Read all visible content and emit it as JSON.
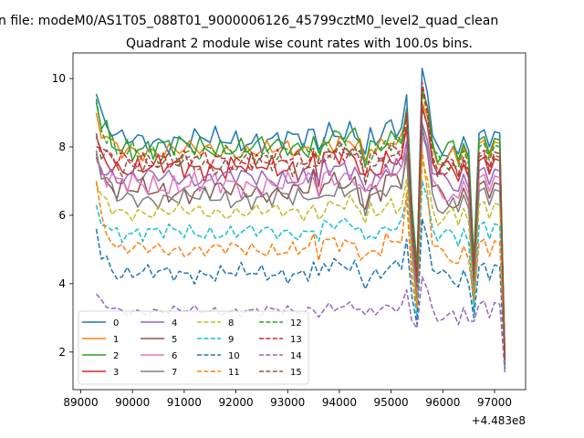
{
  "figure": {
    "suptitle": "n file: modeM0/AS1T05_088T01_9000006126_45799cztM0_level2_quad_clean"
  },
  "chart_data": {
    "type": "line",
    "title": "Quadrant 2 module wise count rates with 100.0s bins.",
    "xlabel": "",
    "ylabel": "",
    "x_offset_label": "+4.483e8",
    "x_offset": 448300000,
    "xlim": [
      88850,
      97600
    ],
    "ylim": [
      0.9,
      10.75
    ],
    "x_ticks": [
      89000,
      90000,
      91000,
      92000,
      93000,
      94000,
      95000,
      96000,
      97000
    ],
    "x_tick_labels": [
      "89000",
      "90000",
      "91000",
      "92000",
      "93000",
      "94000",
      "95000",
      "96000",
      "97000"
    ],
    "y_ticks": [
      2,
      4,
      6,
      8,
      10
    ],
    "y_tick_labels": [
      "2",
      "4",
      "6",
      "8",
      "10"
    ],
    "grid": false,
    "legend": {
      "placement": "lower-left",
      "columns": 4
    },
    "x_start": 89300,
    "x_step": 100,
    "n_points": 80,
    "series": [
      {
        "name": "0",
        "color": "#1f77b4",
        "dash": "solid",
        "base": 8.2,
        "amp": 0.35,
        "start": 9.55,
        "dip1": 4.5,
        "peak1": 10.3,
        "dip2": 1.6
      },
      {
        "name": "1",
        "color": "#ff7f0e",
        "dash": "solid",
        "base": 7.9,
        "amp": 0.3,
        "start": 9.0,
        "dip1": 3.8,
        "peak1": 9.3,
        "dip2": 1.7
      },
      {
        "name": "2",
        "color": "#2ca02c",
        "dash": "solid",
        "base": 8.0,
        "amp": 0.35,
        "start": 9.3,
        "dip1": 4.4,
        "peak1": 9.7,
        "dip2": 1.9
      },
      {
        "name": "3",
        "color": "#d62728",
        "dash": "solid",
        "base": 7.4,
        "amp": 0.35,
        "start": 8.3,
        "dip1": 4.0,
        "peak1": 9.2,
        "dip2": 1.8
      },
      {
        "name": "4",
        "color": "#9467bd",
        "dash": "solid",
        "base": 7.1,
        "amp": 0.3,
        "start": 7.8,
        "dip1": 3.5,
        "peak1": 8.7,
        "dip2": 1.5
      },
      {
        "name": "5",
        "color": "#8c564b",
        "dash": "solid",
        "base": 6.7,
        "amp": 0.35,
        "start": 7.7,
        "dip1": 3.4,
        "peak1": 8.5,
        "dip2": 1.6
      },
      {
        "name": "6",
        "color": "#e377c2",
        "dash": "solid",
        "base": 6.9,
        "amp": 0.35,
        "start": 7.6,
        "dip1": 3.6,
        "peak1": 8.3,
        "dip2": 1.7
      },
      {
        "name": "7",
        "color": "#7f7f7f",
        "dash": "solid",
        "base": 6.5,
        "amp": 0.3,
        "start": 7.9,
        "dip1": 3.4,
        "peak1": 8.6,
        "dip2": 1.5
      },
      {
        "name": "8",
        "color": "#bcbd22",
        "dash": "dashed",
        "base": 6.1,
        "amp": 0.25,
        "start": 6.9,
        "dip1": 3.2,
        "peak1": 7.6,
        "dip2": 1.8
      },
      {
        "name": "9",
        "color": "#17becf",
        "dash": "dashed",
        "base": 5.5,
        "amp": 0.25,
        "start": 6.3,
        "dip1": 3.0,
        "peak1": 7.0,
        "dip2": 1.6
      },
      {
        "name": "10",
        "color": "#1f77b4",
        "dash": "dashed",
        "base": 4.3,
        "amp": 0.25,
        "start": 5.6,
        "dip1": 2.8,
        "peak1": 5.9,
        "dip2": 1.5
      },
      {
        "name": "11",
        "color": "#ff7f0e",
        "dash": "dashed",
        "base": 5.0,
        "amp": 0.25,
        "start": 7.0,
        "dip1": 3.3,
        "peak1": 7.9,
        "dip2": 1.7
      },
      {
        "name": "12",
        "color": "#2ca02c",
        "dash": "dashed",
        "base": 7.8,
        "amp": 0.3,
        "start": 9.4,
        "dip1": 4.3,
        "peak1": 9.6,
        "dip2": 1.9
      },
      {
        "name": "13",
        "color": "#d62728",
        "dash": "dashed",
        "base": 7.6,
        "amp": 0.3,
        "start": 8.0,
        "dip1": 4.1,
        "peak1": 9.9,
        "dip2": 1.8
      },
      {
        "name": "14",
        "color": "#9467bd",
        "dash": "dashed",
        "base": 3.2,
        "amp": 0.15,
        "start": 3.7,
        "dip1": 2.7,
        "peak1": 4.2,
        "dip2": 1.4
      },
      {
        "name": "15",
        "color": "#8c564b",
        "dash": "dashed",
        "base": 7.5,
        "amp": 0.35,
        "start": 8.4,
        "dip1": 3.9,
        "peak1": 9.1,
        "dip2": 1.7
      }
    ]
  }
}
